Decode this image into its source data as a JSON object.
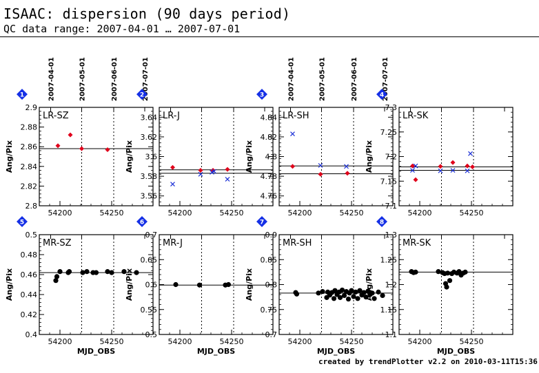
{
  "page": {
    "title": "ISAAC: dispersion (90 days period)",
    "subtitle": "QC data range: 2007-04-01 … 2007-07-01",
    "footer": "created by trendPlotter v2.2 on  2010-03-11T15:36:10"
  },
  "colors": {
    "red": "#e0001b",
    "blue": "#1a2fd6",
    "black": "#000000",
    "badge": "#1530e6"
  },
  "chart_data": [
    {
      "type": "scatter",
      "panel": "1",
      "label": "LR-SZ",
      "ylabel": "Ang/Pix",
      "xlim": [
        54180,
        54290
      ],
      "ylim": [
        2.8,
        2.9
      ],
      "yticks": [
        "2.8",
        "2.82",
        "2.84",
        "2.86",
        "2.88",
        "2.9"
      ],
      "xticks": [
        "54200",
        "54250"
      ],
      "date_ticks": [
        {
          "mjd": 54191,
          "label": "2007-04-01"
        },
        {
          "mjd": 54221,
          "label": "2007-05-01"
        },
        {
          "mjd": 54252,
          "label": "2007-06-01"
        },
        {
          "mjd": 54282,
          "label": "2007-07-01"
        }
      ],
      "hlines": [
        2.858
      ],
      "series": [
        {
          "color": "red",
          "marker": "diamond",
          "points": [
            [
              54198,
              2.861
            ],
            [
              54210,
              2.872
            ],
            [
              54221,
              2.858
            ],
            [
              54246,
              2.857
            ]
          ]
        }
      ]
    },
    {
      "type": "scatter",
      "panel": "2",
      "label": "LR-J",
      "ylabel": "Ang/Pix",
      "xlim": [
        54180,
        54290
      ],
      "ylim": [
        3.55,
        3.65
      ],
      "yticks": [
        "3.56",
        "3.58",
        "3.6",
        "3.62",
        "3.64"
      ],
      "xticks": [
        "54200",
        "54250"
      ],
      "date_ticks": [
        {
          "mjd": 54191,
          "label": ""
        },
        {
          "mjd": 54221,
          "label": ""
        },
        {
          "mjd": 54252,
          "label": ""
        },
        {
          "mjd": 54282,
          "label": ""
        }
      ],
      "hlines": [
        3.5865,
        3.583
      ],
      "series": [
        {
          "color": "red",
          "marker": "diamond",
          "points": [
            [
              54193,
              3.589
            ],
            [
              54220,
              3.586
            ],
            [
              54232,
              3.586
            ],
            [
              54246,
              3.587
            ]
          ]
        },
        {
          "color": "blue",
          "marker": "x",
          "points": [
            [
              54193,
              3.572
            ],
            [
              54220,
              3.582
            ],
            [
              54231,
              3.584
            ],
            [
              54233,
              3.585
            ],
            [
              54246,
              3.577
            ]
          ]
        }
      ]
    },
    {
      "type": "scatter",
      "panel": "3",
      "label": "LR-SH",
      "ylabel": "Ang/Pix",
      "xlim": [
        54180,
        54290
      ],
      "ylim": [
        4.75,
        4.85
      ],
      "yticks": [
        "4.76",
        "4.78",
        "4.8",
        "4.82",
        "4.84"
      ],
      "xticks": [
        "54200",
        "54250"
      ],
      "date_ticks": [
        {
          "mjd": 54191,
          "label": "2007-04-01"
        },
        {
          "mjd": 54221,
          "label": "2007-05-01"
        },
        {
          "mjd": 54252,
          "label": "2007-06-01"
        },
        {
          "mjd": 54282,
          "label": "2007-07-01"
        }
      ],
      "hlines": [
        4.7905,
        4.7825
      ],
      "series": [
        {
          "color": "red",
          "marker": "diamond",
          "points": [
            [
              54193,
              4.79
            ],
            [
              54220,
              4.782
            ],
            [
              54246,
              4.783
            ]
          ]
        },
        {
          "color": "blue",
          "marker": "x",
          "points": [
            [
              54193,
              4.823
            ],
            [
              54220,
              4.791
            ],
            [
              54245,
              4.79
            ]
          ]
        }
      ]
    },
    {
      "type": "scatter",
      "panel": "4",
      "label": "LR-SK",
      "ylabel": "Ang/Pix",
      "xlim": [
        54180,
        54290
      ],
      "ylim": [
        7.1,
        7.3
      ],
      "yticks": [
        "7.1",
        "7.15",
        "7.2",
        "7.25",
        "7.3"
      ],
      "xticks": [
        "54200",
        "54250"
      ],
      "date_ticks": [
        {
          "mjd": 54191,
          "label": ""
        },
        {
          "mjd": 54221,
          "label": ""
        },
        {
          "mjd": 54252,
          "label": ""
        },
        {
          "mjd": 54282,
          "label": ""
        }
      ],
      "hlines": [
        7.179,
        7.172
      ],
      "series": [
        {
          "color": "red",
          "marker": "diamond",
          "points": [
            [
              54193,
              7.181
            ],
            [
              54196,
              7.153
            ],
            [
              54220,
              7.18
            ],
            [
              54232,
              7.188
            ],
            [
              54246,
              7.181
            ],
            [
              54251,
              7.179
            ]
          ]
        },
        {
          "color": "blue",
          "marker": "x",
          "points": [
            [
              54193,
              7.172
            ],
            [
              54196,
              7.181
            ],
            [
              54220,
              7.171
            ],
            [
              54232,
              7.172
            ],
            [
              54246,
              7.171
            ],
            [
              54249,
              7.206
            ]
          ]
        }
      ]
    },
    {
      "type": "scatter",
      "panel": "5",
      "label": "MR-SZ",
      "ylabel": "Ang/Pix",
      "xlabel": "MJD_OBS",
      "xlim": [
        54180,
        54290
      ],
      "ylim": [
        0.4,
        0.5
      ],
      "yticks": [
        "0.4",
        "0.42",
        "0.44",
        "0.46",
        "0.48",
        "0.5"
      ],
      "xticks": [
        "54200",
        "54250"
      ],
      "date_ticks": [
        {
          "mjd": 54191,
          "label": ""
        },
        {
          "mjd": 54221,
          "label": ""
        },
        {
          "mjd": 54252,
          "label": ""
        },
        {
          "mjd": 54282,
          "label": ""
        }
      ],
      "hlines": [
        0.462
      ],
      "series": [
        {
          "color": "black",
          "marker": "dot",
          "points": [
            [
              54196,
              0.454
            ],
            [
              54197,
              0.458
            ],
            [
              54200,
              0.463
            ],
            [
              54208,
              0.462
            ],
            [
              54209,
              0.463
            ],
            [
              54222,
              0.462
            ],
            [
              54226,
              0.463
            ],
            [
              54232,
              0.462
            ],
            [
              54235,
              0.462
            ],
            [
              54246,
              0.463
            ],
            [
              54250,
              0.462
            ],
            [
              54262,
              0.463
            ],
            [
              54274,
              0.462
            ]
          ]
        }
      ]
    },
    {
      "type": "scatter",
      "panel": "6",
      "label": "MR-J",
      "ylabel": "Ang/Pix",
      "xlabel": "MJD_OBS",
      "xlim": [
        54180,
        54290
      ],
      "ylim": [
        0.5,
        0.7
      ],
      "yticks": [
        "0.5",
        "0.55",
        "0.6",
        "0.65",
        "0.7"
      ],
      "xticks": [
        "54200",
        "54250"
      ],
      "date_ticks": [
        {
          "mjd": 54191,
          "label": ""
        },
        {
          "mjd": 54221,
          "label": ""
        },
        {
          "mjd": 54252,
          "label": ""
        },
        {
          "mjd": 54282,
          "label": ""
        }
      ],
      "hlines": [
        0.599
      ],
      "series": [
        {
          "color": "black",
          "marker": "dot",
          "points": [
            [
              54196,
              0.6
            ],
            [
              54219,
              0.599
            ],
            [
              54244,
              0.599
            ],
            [
              54247,
              0.6
            ]
          ]
        }
      ]
    },
    {
      "type": "scatter",
      "panel": "7",
      "label": "MR-SH",
      "ylabel": "Ang/Pix",
      "xlabel": "MJD_OBS",
      "xlim": [
        54180,
        54290
      ],
      "ylim": [
        0.7,
        0.9
      ],
      "yticks": [
        "0.7",
        "0.75",
        "0.8",
        "0.85",
        "0.9"
      ],
      "xticks": [
        "54200",
        "54250"
      ],
      "date_ticks": [
        {
          "mjd": 54191,
          "label": ""
        },
        {
          "mjd": 54221,
          "label": ""
        },
        {
          "mjd": 54252,
          "label": ""
        },
        {
          "mjd": 54282,
          "label": ""
        }
      ],
      "hlines": [
        0.783
      ],
      "series": [
        {
          "color": "black",
          "marker": "dot",
          "points": [
            [
              54196,
              0.784
            ],
            [
              54197,
              0.781
            ],
            [
              54218,
              0.783
            ],
            [
              54222,
              0.786
            ],
            [
              54226,
              0.774
            ],
            [
              54227,
              0.785
            ],
            [
              54229,
              0.779
            ],
            [
              54231,
              0.784
            ],
            [
              54233,
              0.772
            ],
            [
              54234,
              0.788
            ],
            [
              54236,
              0.78
            ],
            [
              54238,
              0.785
            ],
            [
              54239,
              0.774
            ],
            [
              54241,
              0.789
            ],
            [
              54243,
              0.778
            ],
            [
              54245,
              0.786
            ],
            [
              54247,
              0.771
            ],
            [
              54248,
              0.783
            ],
            [
              54250,
              0.788
            ],
            [
              54252,
              0.776
            ],
            [
              54254,
              0.785
            ],
            [
              54256,
              0.772
            ],
            [
              54258,
              0.788
            ],
            [
              54260,
              0.779
            ],
            [
              54262,
              0.784
            ],
            [
              54264,
              0.775
            ],
            [
              54266,
              0.787
            ],
            [
              54268,
              0.78
            ],
            [
              54270,
              0.783
            ],
            [
              54272,
              0.772
            ],
            [
              54276,
              0.785
            ],
            [
              54280,
              0.778
            ]
          ]
        }
      ]
    },
    {
      "type": "scatter",
      "panel": "8",
      "label": "MR-SK",
      "ylabel": "Ang/Pix",
      "xlabel": "MJD_OBS",
      "xlim": [
        54180,
        54290
      ],
      "ylim": [
        1.1,
        1.3
      ],
      "yticks": [
        "1.1",
        "1.15",
        "1.2",
        "1.25",
        "1.3"
      ],
      "xticks": [
        "54200",
        "54250"
      ],
      "date_ticks": [
        {
          "mjd": 54191,
          "label": ""
        },
        {
          "mjd": 54221,
          "label": ""
        },
        {
          "mjd": 54252,
          "label": ""
        },
        {
          "mjd": 54282,
          "label": ""
        }
      ],
      "hlines": [
        1.225
      ],
      "series": [
        {
          "color": "black",
          "marker": "dot",
          "points": [
            [
              54192,
              1.226
            ],
            [
              54194,
              1.224
            ],
            [
              54196,
              1.225
            ],
            [
              54218,
              1.226
            ],
            [
              54222,
              1.224
            ],
            [
              54224,
              1.222
            ],
            [
              54225,
              1.202
            ],
            [
              54226,
              1.195
            ],
            [
              54227,
              1.223
            ],
            [
              54229,
              1.208
            ],
            [
              54231,
              1.222
            ],
            [
              54233,
              1.225
            ],
            [
              54236,
              1.223
            ],
            [
              54238,
              1.226
            ],
            [
              54240,
              1.219
            ],
            [
              54242,
              1.223
            ],
            [
              54244,
              1.225
            ]
          ]
        }
      ]
    }
  ]
}
